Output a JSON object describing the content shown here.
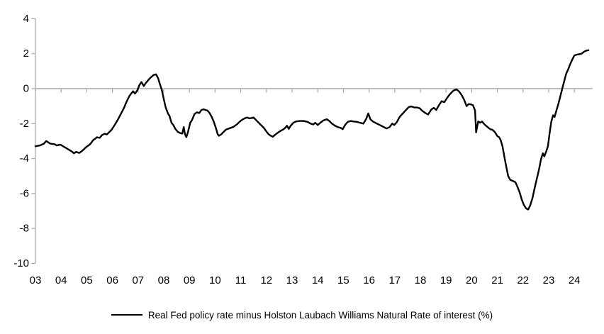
{
  "chart_data": {
    "type": "line",
    "title": "",
    "xlabel": "",
    "ylabel": "",
    "legend": "Real Fed policy rate minus Holston Laubach Williams Natural Rate of interest (%)",
    "legend_position": "bottom-center",
    "grid": "zero-gridline-only",
    "ylim": [
      -10,
      4
    ],
    "xlim": [
      2003,
      2024.65
    ],
    "y_ticks": [
      4,
      2,
      0,
      -2,
      -4,
      -6,
      -8,
      -10
    ],
    "x_tick_years": [
      2003,
      2004,
      2005,
      2006,
      2007,
      2008,
      2009,
      2010,
      2011,
      2012,
      2013,
      2014,
      2015,
      2016,
      2017,
      2018,
      2019,
      2020,
      2021,
      2022,
      2023,
      2024
    ],
    "x_tick_labels": [
      "03",
      "04",
      "05",
      "06",
      "07",
      "08",
      "09",
      "10",
      "11",
      "12",
      "13",
      "14",
      "15",
      "16",
      "17",
      "18",
      "19",
      "20",
      "21",
      "22",
      "23",
      "24"
    ],
    "colors": {
      "line": "#000000",
      "axis": "#a6a6a6",
      "text": "#000000",
      "background": "#ffffff"
    },
    "series": [
      {
        "name": "Real Fed policy rate minus Holston Laubach Williams Natural Rate of interest (%)",
        "color": "#000000",
        "points": [
          [
            2003.0,
            -3.3
          ],
          [
            2003.17,
            -3.25
          ],
          [
            2003.33,
            -3.15
          ],
          [
            2003.42,
            -3.0
          ],
          [
            2003.58,
            -3.15
          ],
          [
            2003.75,
            -3.18
          ],
          [
            2003.83,
            -3.25
          ],
          [
            2003.97,
            -3.2
          ],
          [
            2004.08,
            -3.3
          ],
          [
            2004.25,
            -3.45
          ],
          [
            2004.42,
            -3.6
          ],
          [
            2004.5,
            -3.7
          ],
          [
            2004.58,
            -3.62
          ],
          [
            2004.71,
            -3.68
          ],
          [
            2004.83,
            -3.55
          ],
          [
            2004.97,
            -3.35
          ],
          [
            2005.13,
            -3.18
          ],
          [
            2005.25,
            -2.95
          ],
          [
            2005.4,
            -2.78
          ],
          [
            2005.5,
            -2.82
          ],
          [
            2005.6,
            -2.65
          ],
          [
            2005.7,
            -2.58
          ],
          [
            2005.78,
            -2.62
          ],
          [
            2005.88,
            -2.48
          ],
          [
            2005.97,
            -2.35
          ],
          [
            2006.1,
            -2.05
          ],
          [
            2006.22,
            -1.75
          ],
          [
            2006.33,
            -1.45
          ],
          [
            2006.45,
            -1.1
          ],
          [
            2006.55,
            -0.75
          ],
          [
            2006.65,
            -0.45
          ],
          [
            2006.72,
            -0.3
          ],
          [
            2006.8,
            -0.15
          ],
          [
            2006.88,
            -0.28
          ],
          [
            2006.97,
            -0.1
          ],
          [
            2007.05,
            0.2
          ],
          [
            2007.13,
            0.38
          ],
          [
            2007.22,
            0.15
          ],
          [
            2007.3,
            0.32
          ],
          [
            2007.4,
            0.5
          ],
          [
            2007.5,
            0.65
          ],
          [
            2007.6,
            0.78
          ],
          [
            2007.7,
            0.82
          ],
          [
            2007.78,
            0.6
          ],
          [
            2007.85,
            0.25
          ],
          [
            2007.93,
            -0.1
          ],
          [
            2008.0,
            -0.6
          ],
          [
            2008.08,
            -1.1
          ],
          [
            2008.17,
            -1.45
          ],
          [
            2008.22,
            -1.55
          ],
          [
            2008.3,
            -1.95
          ],
          [
            2008.38,
            -2.1
          ],
          [
            2008.45,
            -2.3
          ],
          [
            2008.55,
            -2.48
          ],
          [
            2008.65,
            -2.55
          ],
          [
            2008.72,
            -2.57
          ],
          [
            2008.78,
            -2.2
          ],
          [
            2008.83,
            -2.62
          ],
          [
            2008.88,
            -2.77
          ],
          [
            2008.95,
            -2.45
          ],
          [
            2009.03,
            -1.95
          ],
          [
            2009.1,
            -1.8
          ],
          [
            2009.2,
            -1.45
          ],
          [
            2009.3,
            -1.35
          ],
          [
            2009.38,
            -1.4
          ],
          [
            2009.47,
            -1.22
          ],
          [
            2009.55,
            -1.18
          ],
          [
            2009.63,
            -1.22
          ],
          [
            2009.7,
            -1.25
          ],
          [
            2009.78,
            -1.38
          ],
          [
            2009.87,
            -1.62
          ],
          [
            2009.95,
            -1.9
          ],
          [
            2010.03,
            -2.25
          ],
          [
            2010.1,
            -2.6
          ],
          [
            2010.15,
            -2.7
          ],
          [
            2010.25,
            -2.6
          ],
          [
            2010.33,
            -2.48
          ],
          [
            2010.42,
            -2.35
          ],
          [
            2010.5,
            -2.3
          ],
          [
            2010.6,
            -2.25
          ],
          [
            2010.7,
            -2.2
          ],
          [
            2010.78,
            -2.12
          ],
          [
            2010.87,
            -2.02
          ],
          [
            2010.95,
            -1.9
          ],
          [
            2011.05,
            -1.78
          ],
          [
            2011.15,
            -1.7
          ],
          [
            2011.25,
            -1.65
          ],
          [
            2011.33,
            -1.7
          ],
          [
            2011.42,
            -1.68
          ],
          [
            2011.5,
            -1.65
          ],
          [
            2011.6,
            -1.8
          ],
          [
            2011.7,
            -1.95
          ],
          [
            2011.8,
            -2.1
          ],
          [
            2011.9,
            -2.25
          ],
          [
            2012.0,
            -2.45
          ],
          [
            2012.08,
            -2.6
          ],
          [
            2012.17,
            -2.7
          ],
          [
            2012.25,
            -2.75
          ],
          [
            2012.33,
            -2.65
          ],
          [
            2012.42,
            -2.55
          ],
          [
            2012.55,
            -2.42
          ],
          [
            2012.67,
            -2.32
          ],
          [
            2012.75,
            -2.22
          ],
          [
            2012.8,
            -2.12
          ],
          [
            2012.87,
            -2.3
          ],
          [
            2012.95,
            -2.12
          ],
          [
            2013.05,
            -1.95
          ],
          [
            2013.15,
            -1.88
          ],
          [
            2013.3,
            -1.85
          ],
          [
            2013.45,
            -1.85
          ],
          [
            2013.6,
            -1.9
          ],
          [
            2013.72,
            -2.0
          ],
          [
            2013.83,
            -2.05
          ],
          [
            2013.9,
            -1.95
          ],
          [
            2014.0,
            -2.08
          ],
          [
            2014.1,
            -1.95
          ],
          [
            2014.22,
            -1.82
          ],
          [
            2014.35,
            -1.75
          ],
          [
            2014.45,
            -1.85
          ],
          [
            2014.55,
            -2.0
          ],
          [
            2014.67,
            -2.12
          ],
          [
            2014.78,
            -2.2
          ],
          [
            2014.9,
            -2.25
          ],
          [
            2014.97,
            -2.32
          ],
          [
            2015.08,
            -2.05
          ],
          [
            2015.17,
            -1.9
          ],
          [
            2015.28,
            -1.85
          ],
          [
            2015.4,
            -1.88
          ],
          [
            2015.52,
            -1.9
          ],
          [
            2015.65,
            -1.95
          ],
          [
            2015.78,
            -2.0
          ],
          [
            2015.88,
            -1.75
          ],
          [
            2015.97,
            -1.42
          ],
          [
            2016.05,
            -1.75
          ],
          [
            2016.15,
            -1.88
          ],
          [
            2016.28,
            -1.98
          ],
          [
            2016.42,
            -2.08
          ],
          [
            2016.55,
            -2.18
          ],
          [
            2016.68,
            -2.28
          ],
          [
            2016.8,
            -2.2
          ],
          [
            2016.9,
            -2.0
          ],
          [
            2016.98,
            -2.08
          ],
          [
            2017.08,
            -1.92
          ],
          [
            2017.2,
            -1.6
          ],
          [
            2017.33,
            -1.4
          ],
          [
            2017.45,
            -1.2
          ],
          [
            2017.55,
            -1.05
          ],
          [
            2017.65,
            -1.02
          ],
          [
            2017.77,
            -1.08
          ],
          [
            2017.88,
            -1.08
          ],
          [
            2017.97,
            -1.12
          ],
          [
            2018.08,
            -1.28
          ],
          [
            2018.2,
            -1.4
          ],
          [
            2018.3,
            -1.48
          ],
          [
            2018.42,
            -1.2
          ],
          [
            2018.52,
            -1.1
          ],
          [
            2018.62,
            -1.22
          ],
          [
            2018.72,
            -0.95
          ],
          [
            2018.83,
            -0.72
          ],
          [
            2018.93,
            -0.78
          ],
          [
            2019.03,
            -0.55
          ],
          [
            2019.15,
            -0.32
          ],
          [
            2019.28,
            -0.12
          ],
          [
            2019.4,
            -0.04
          ],
          [
            2019.5,
            -0.15
          ],
          [
            2019.6,
            -0.35
          ],
          [
            2019.7,
            -0.62
          ],
          [
            2019.8,
            -1.0
          ],
          [
            2019.88,
            -0.88
          ],
          [
            2019.97,
            -0.9
          ],
          [
            2020.05,
            -0.95
          ],
          [
            2020.13,
            -1.25
          ],
          [
            2020.17,
            -2.5
          ],
          [
            2020.25,
            -1.88
          ],
          [
            2020.33,
            -1.95
          ],
          [
            2020.4,
            -1.88
          ],
          [
            2020.5,
            -2.05
          ],
          [
            2020.62,
            -2.2
          ],
          [
            2020.72,
            -2.32
          ],
          [
            2020.8,
            -2.35
          ],
          [
            2020.9,
            -2.48
          ],
          [
            2021.0,
            -2.72
          ],
          [
            2021.07,
            -2.78
          ],
          [
            2021.13,
            -2.95
          ],
          [
            2021.2,
            -3.3
          ],
          [
            2021.28,
            -3.95
          ],
          [
            2021.35,
            -4.5
          ],
          [
            2021.42,
            -5.0
          ],
          [
            2021.5,
            -5.22
          ],
          [
            2021.6,
            -5.28
          ],
          [
            2021.7,
            -5.35
          ],
          [
            2021.78,
            -5.6
          ],
          [
            2021.87,
            -5.95
          ],
          [
            2021.95,
            -6.35
          ],
          [
            2022.03,
            -6.65
          ],
          [
            2022.12,
            -6.85
          ],
          [
            2022.2,
            -6.92
          ],
          [
            2022.28,
            -6.68
          ],
          [
            2022.37,
            -6.25
          ],
          [
            2022.45,
            -5.7
          ],
          [
            2022.53,
            -5.2
          ],
          [
            2022.62,
            -4.65
          ],
          [
            2022.7,
            -4.05
          ],
          [
            2022.77,
            -3.7
          ],
          [
            2022.83,
            -3.88
          ],
          [
            2022.9,
            -3.6
          ],
          [
            2022.97,
            -3.3
          ],
          [
            2023.03,
            -2.6
          ],
          [
            2023.1,
            -1.9
          ],
          [
            2023.17,
            -1.52
          ],
          [
            2023.23,
            -1.62
          ],
          [
            2023.3,
            -1.25
          ],
          [
            2023.38,
            -0.85
          ],
          [
            2023.45,
            -0.45
          ],
          [
            2023.52,
            -0.05
          ],
          [
            2023.6,
            0.4
          ],
          [
            2023.68,
            0.85
          ],
          [
            2023.77,
            1.15
          ],
          [
            2023.85,
            1.45
          ],
          [
            2023.93,
            1.7
          ],
          [
            2024.0,
            1.9
          ],
          [
            2024.1,
            1.95
          ],
          [
            2024.2,
            1.97
          ],
          [
            2024.3,
            2.02
          ],
          [
            2024.38,
            2.12
          ],
          [
            2024.47,
            2.18
          ],
          [
            2024.55,
            2.2
          ]
        ]
      }
    ]
  }
}
